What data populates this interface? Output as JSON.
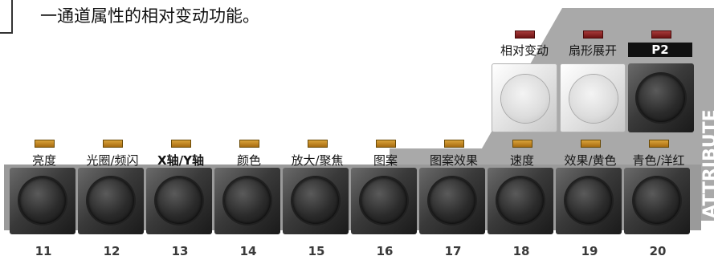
{
  "intro": {
    "text": "一通道属性的相对变动功能。"
  },
  "side_label": "ATTRIBUTE",
  "colors": {
    "panel_gray": "#a9a9a9",
    "led_amber": "#c68a22",
    "led_red": "#8a2020"
  },
  "top_buttons": [
    {
      "label": "相对变动",
      "led": "red",
      "style": "light"
    },
    {
      "label": "扇形展开",
      "led": "red",
      "style": "light"
    },
    {
      "label": "P2",
      "led": "red",
      "style": "dark",
      "boxed": true
    }
  ],
  "bottom_buttons": [
    {
      "label": "亮度",
      "number": "11"
    },
    {
      "label": "光圈/频闪",
      "number": "12"
    },
    {
      "label": "X轴/Y轴",
      "number": "13"
    },
    {
      "label": "颜色",
      "number": "14"
    },
    {
      "label": "放大/聚焦",
      "number": "15"
    },
    {
      "label": "图案",
      "number": "16"
    },
    {
      "label": "图案效果",
      "number": "17"
    },
    {
      "label": "速度",
      "number": "18"
    },
    {
      "label": "效果/黄色",
      "number": "19"
    },
    {
      "label": "青色/洋红",
      "number": "20"
    }
  ]
}
